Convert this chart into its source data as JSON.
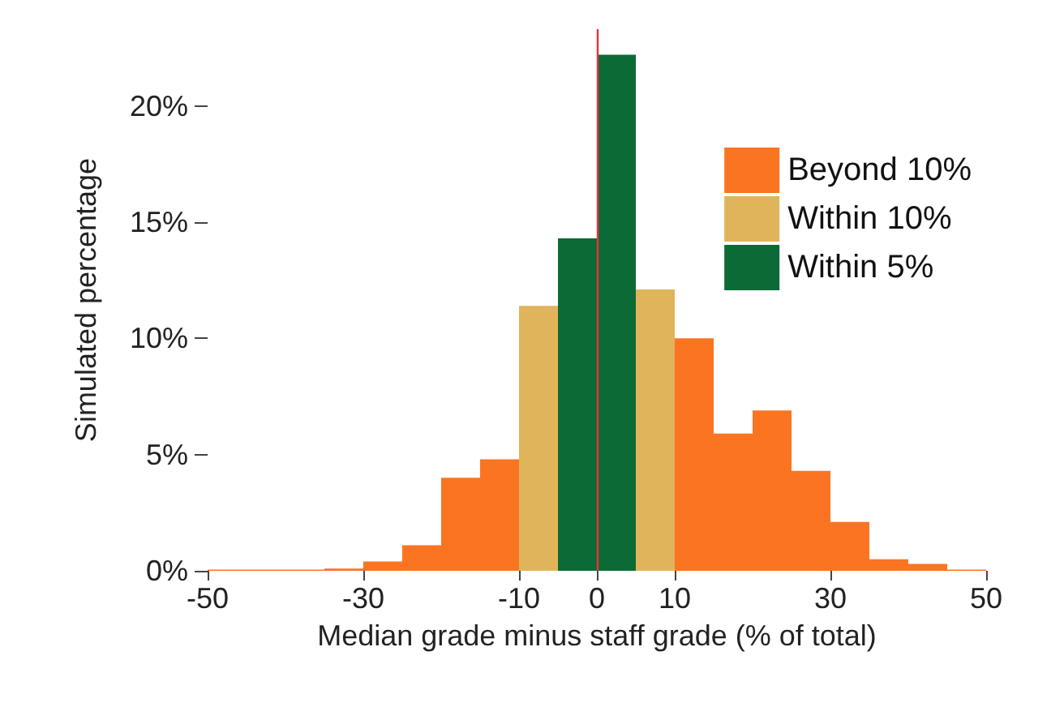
{
  "chart_data": {
    "type": "histogram",
    "xlabel": "Median grade minus staff grade (% of total)",
    "ylabel": "Simulated percentage",
    "bins": [
      -50,
      -45,
      -40,
      -35,
      -30,
      -25,
      -20,
      -15,
      -10,
      -5,
      0,
      5,
      10,
      15,
      20,
      25,
      30,
      35,
      40,
      45,
      50
    ],
    "series": [
      {
        "name": "Beyond 10%",
        "color": "#fb7422",
        "values": [
          0.05,
          0.05,
          0.05,
          0.1,
          0.4,
          1.1,
          4.0,
          4.8,
          null,
          null,
          null,
          null,
          10.0,
          5.9,
          6.9,
          4.3,
          2.1,
          0.5,
          0.3,
          0.05
        ]
      },
      {
        "name": "Within 10%",
        "color": "#e0b45a",
        "values": [
          null,
          null,
          null,
          null,
          null,
          null,
          null,
          null,
          11.4,
          null,
          null,
          12.1,
          null,
          null,
          null,
          null,
          null,
          null,
          null,
          null
        ]
      },
      {
        "name": "Within 5%",
        "color": "#0b6a35",
        "values": [
          null,
          null,
          null,
          null,
          null,
          null,
          null,
          null,
          null,
          14.3,
          22.2,
          null,
          null,
          null,
          null,
          null,
          null,
          null,
          null,
          null
        ]
      }
    ],
    "xlim": [
      -50,
      50
    ],
    "xticks": [
      -50,
      -30,
      -10,
      0,
      10,
      30,
      50
    ],
    "ylim": [
      0,
      23.3
    ],
    "yticks": [
      {
        "value": 0,
        "label": "0%"
      },
      {
        "value": 5,
        "label": "5%"
      },
      {
        "value": 10,
        "label": "10%"
      },
      {
        "value": 15,
        "label": "15%"
      },
      {
        "value": 20,
        "label": "20%"
      }
    ],
    "ref_lines": [
      {
        "axis": "x",
        "value": 0,
        "color": "#e8323c"
      }
    ],
    "grid": false,
    "legend": "top right"
  }
}
